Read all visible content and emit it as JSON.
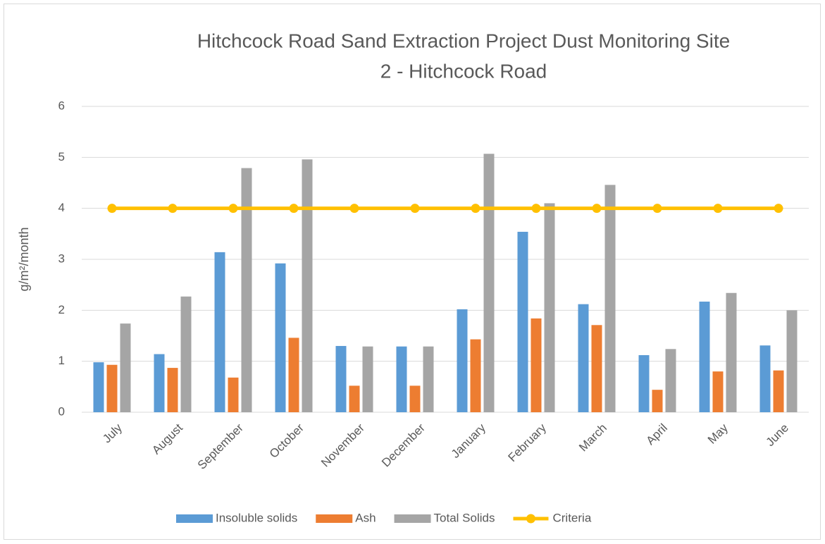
{
  "chart_data": {
    "type": "bar",
    "title": [
      "Hitchcock Road Sand Extraction Project Dust Monitoring Site",
      "2 - Hitchcock Road"
    ],
    "y_label": "g/m²/month",
    "categories": [
      "July",
      "August",
      "September",
      "October",
      "November",
      "December",
      "January",
      "February",
      "March",
      "April",
      "May",
      "June"
    ],
    "series": [
      {
        "name": "Insoluble solids",
        "type": "bar",
        "color": "#5b9bd5",
        "values": [
          0.98,
          1.14,
          3.14,
          2.92,
          1.3,
          1.29,
          2.02,
          3.54,
          2.12,
          1.12,
          2.17,
          1.31
        ]
      },
      {
        "name": "Ash",
        "type": "bar",
        "color": "#ed7d31",
        "values": [
          0.93,
          0.87,
          0.68,
          1.46,
          0.52,
          0.52,
          1.43,
          1.84,
          1.71,
          0.44,
          0.8,
          0.82
        ]
      },
      {
        "name": "Total Solids",
        "type": "bar",
        "color": "#a5a5a5",
        "values": [
          1.74,
          2.27,
          4.79,
          4.96,
          1.29,
          1.29,
          5.07,
          4.1,
          4.46,
          1.24,
          2.34,
          2.0
        ]
      },
      {
        "name": "Criteria",
        "type": "line",
        "color": "#ffc000",
        "values": [
          4,
          4,
          4,
          4,
          4,
          4,
          4,
          4,
          4,
          4,
          4,
          4
        ]
      }
    ],
    "ylim": [
      0,
      6
    ],
    "yticks": [
      0,
      1,
      2,
      3,
      4,
      5,
      6
    ],
    "grid": true,
    "legend": "bottom"
  }
}
